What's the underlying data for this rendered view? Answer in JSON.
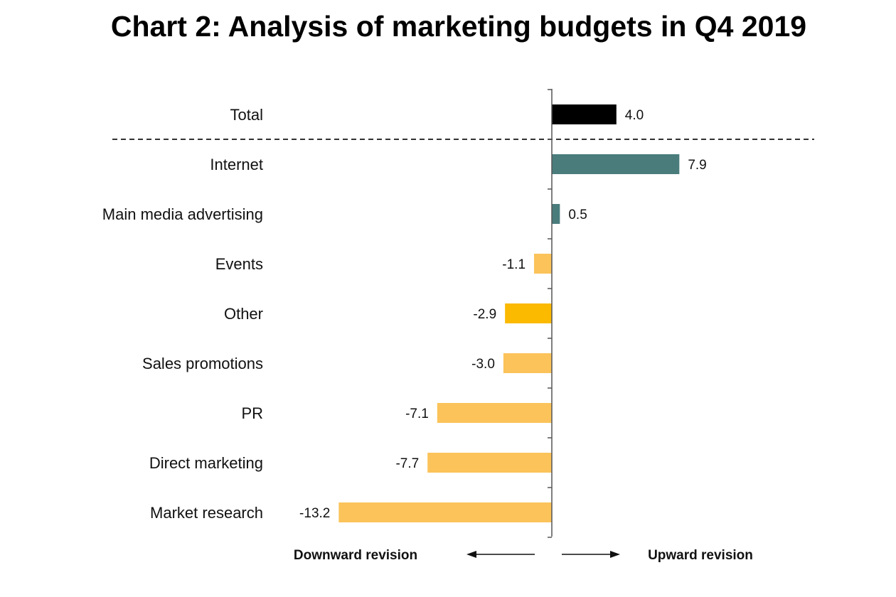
{
  "chart_data": {
    "type": "bar",
    "orientation": "horizontal",
    "title": "Chart 2: Analysis of marketing budgets in Q4 2019",
    "categories": [
      "Total",
      "Internet",
      "Main media advertising",
      "Events",
      "Other",
      "Sales promotions",
      "PR",
      "Direct marketing",
      "Market research"
    ],
    "values": [
      4.0,
      7.9,
      0.5,
      -1.1,
      -2.9,
      -3.0,
      -7.1,
      -7.7,
      -13.2
    ],
    "value_labels": [
      "4.0",
      "7.9",
      "0.5",
      "-1.1",
      "-2.9",
      "-3.0",
      "-7.1",
      "-7.7",
      "-13.2"
    ],
    "bar_colors": [
      "#000000",
      "#4a7c7c",
      "#4a7c7c",
      "#fbc35a",
      "#fbb900",
      "#fbc35a",
      "#fbc35a",
      "#fbc35a",
      "#fbc35a"
    ],
    "separator_after": "Total",
    "xlim": [
      -13.2,
      7.9
    ],
    "downward_label": "Downward revision",
    "upward_label": "Upward revision",
    "grid": false,
    "legend": "none"
  }
}
